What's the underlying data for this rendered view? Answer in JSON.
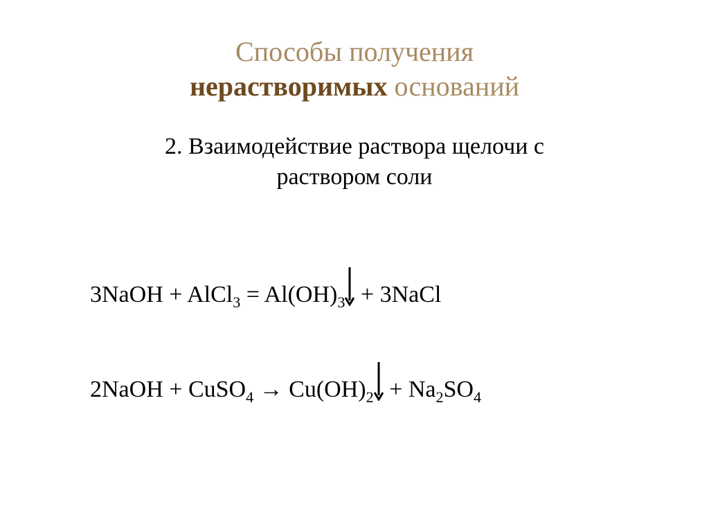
{
  "title": {
    "line1_light": "Способы получения",
    "line2_bold": "нерастворимых",
    "line2_light": " оснований",
    "color_light": "#a88a62",
    "color_bold": "#6e4a1f",
    "fontsize": 40
  },
  "subtitle": {
    "prefix": "2. ",
    "line1": "Взаимодействие раствора щелочи с",
    "line2": "раствором соли",
    "color": "#000000",
    "fontsize": 34
  },
  "equations": {
    "color": "#000000",
    "fontsize": 34,
    "eq1": {
      "lhs1_coef": "3",
      "lhs1_base": "NaOH",
      "plus1": " + ",
      "lhs2_base": "AlCl",
      "lhs2_sub": "3",
      "spaces_eq": "  = ",
      "rhs1_base": "Al(OH)",
      "rhs1_sub": "3",
      "plus2": " + ",
      "rhs2_coef": "3",
      "rhs2_base": "NaCl"
    },
    "eq2": {
      "lhs1_coef": "2",
      "lhs1_base": "NaOH",
      "plus1": " + ",
      "lhs2_base": "CuSO",
      "lhs2_sub": "4",
      "arrow": " → ",
      "rhs1_base": "Cu(OH)",
      "rhs1_sub": "2",
      "plus2": " + ",
      "rhs2_base": "Na",
      "rhs2_sub1": "2",
      "rhs2_mid": "SO",
      "rhs2_sub2": "4"
    }
  },
  "precip_arrow": {
    "color": "#000000",
    "width": 14,
    "height": 58,
    "stroke_width": 3
  }
}
